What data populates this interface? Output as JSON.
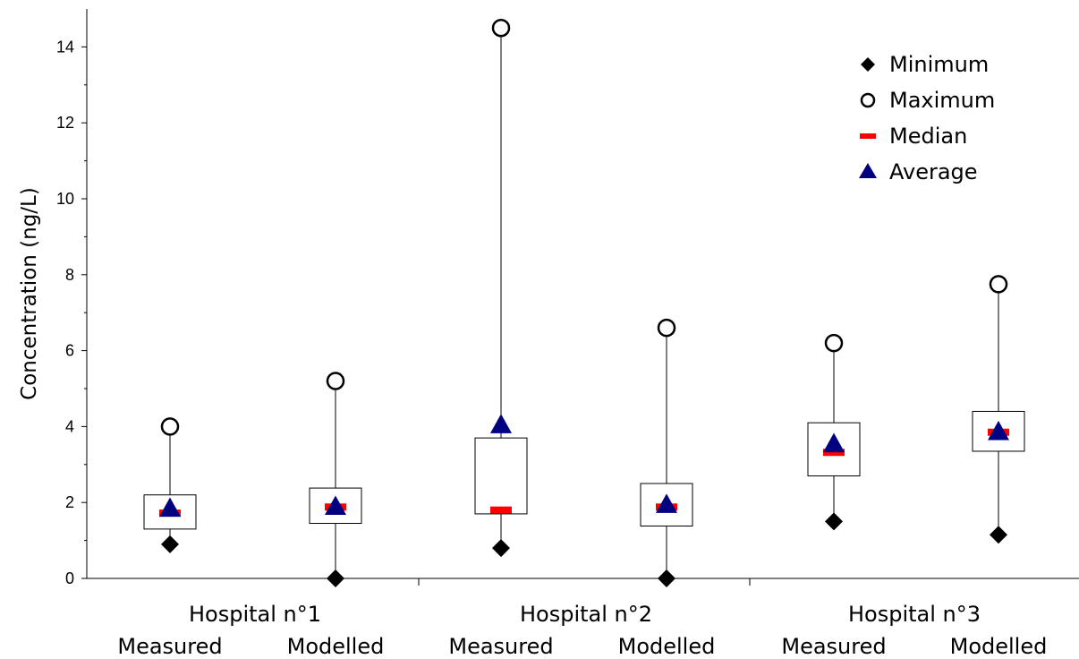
{
  "chart_data": {
    "type": "box",
    "title": "",
    "ylabel": "Concentration (ng/L)",
    "xlabel": "",
    "ylim": [
      0,
      15
    ],
    "yticks": [
      0,
      2,
      4,
      6,
      8,
      10,
      12,
      14
    ],
    "ytick_labels": [
      "0",
      "2",
      "4",
      "6",
      "8",
      "10",
      "12",
      "14"
    ],
    "grid": false,
    "legend_position": "top-right",
    "groups": [
      "Hospital n°1",
      "Hospital n°2",
      "Hospital n°3"
    ],
    "categories": [
      "Measured",
      "Modelled",
      "Measured",
      "Modelled",
      "Measured",
      "Modelled"
    ],
    "boxes": [
      {
        "group": "Hospital n°1",
        "category": "Measured",
        "min": 0.9,
        "q1": 1.3,
        "median": 1.72,
        "q3": 2.2,
        "max": 4.0,
        "average": 1.85
      },
      {
        "group": "Hospital n°1",
        "category": "Modelled",
        "min": 0.0,
        "q1": 1.45,
        "median": 1.88,
        "q3": 2.38,
        "max": 5.2,
        "average": 1.9
      },
      {
        "group": "Hospital n°2",
        "category": "Measured",
        "min": 0.8,
        "q1": 1.7,
        "median": 1.8,
        "q3": 3.7,
        "max": 14.5,
        "average": 4.05
      },
      {
        "group": "Hospital n°2",
        "category": "Modelled",
        "min": 0.0,
        "q1": 1.38,
        "median": 1.88,
        "q3": 2.5,
        "max": 6.6,
        "average": 1.95
      },
      {
        "group": "Hospital n°3",
        "category": "Measured",
        "min": 1.5,
        "q1": 2.7,
        "median": 3.32,
        "q3": 4.1,
        "max": 6.2,
        "average": 3.55
      },
      {
        "group": "Hospital n°3",
        "category": "Modelled",
        "min": 1.15,
        "q1": 3.35,
        "median": 3.85,
        "q3": 4.4,
        "max": 7.75,
        "average": 3.87
      }
    ],
    "legend": [
      {
        "key": "min",
        "label": "Minimum",
        "marker": "diamond",
        "color": "#000000"
      },
      {
        "key": "max",
        "label": "Maximum",
        "marker": "open-circle",
        "color": "#000000"
      },
      {
        "key": "median",
        "label": "Median",
        "marker": "dash",
        "color": "#ff0000"
      },
      {
        "key": "average",
        "label": "Average",
        "marker": "triangle",
        "color": "#000080"
      }
    ],
    "colors": {
      "min": "#000000",
      "max": "#000000",
      "median": "#ff0000",
      "average": "#000080",
      "box": "#000000"
    }
  }
}
